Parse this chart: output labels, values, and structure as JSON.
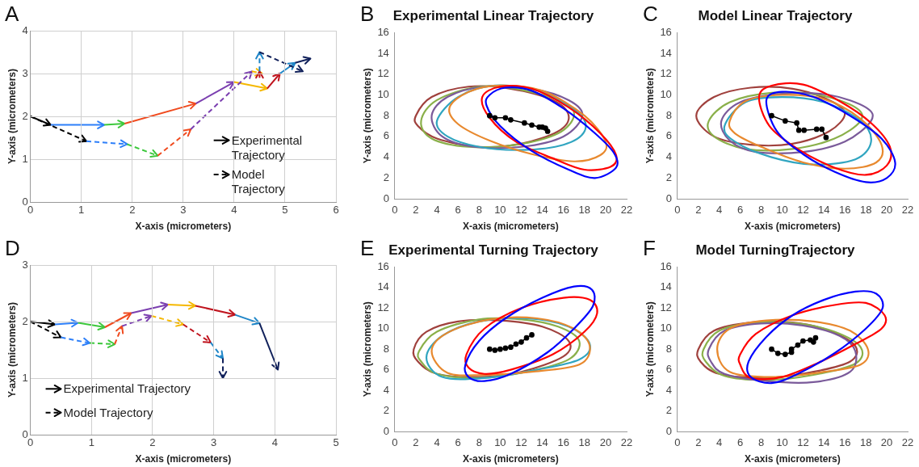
{
  "chart_data": [
    {
      "type": "line",
      "annotations": [
        "A",
        "Experimental Trajectory",
        "Model Trajectory"
      ],
      "xlabel": "X-axis (micrometers)",
      "ylabel": "Y-axis (micrometers)",
      "xlim": [
        0,
        6
      ],
      "xticks": [
        0,
        1,
        2,
        3,
        4,
        5,
        6
      ],
      "ylim": [
        0,
        4
      ],
      "yticks": [
        0,
        1,
        2,
        3,
        4
      ],
      "grid": true
    },
    {
      "type": "line",
      "title": "Experimental Linear Trajectory",
      "annotations": [
        "B"
      ],
      "xlabel": "X-axis (micrometers)",
      "ylabel": "Y-axis (micrometers)",
      "xlim": [
        0,
        22
      ],
      "xticks": [
        0,
        2,
        4,
        6,
        8,
        10,
        12,
        14,
        16,
        18,
        20,
        22
      ],
      "ylim": [
        0,
        16
      ],
      "yticks": [
        0,
        2,
        4,
        6,
        8,
        10,
        12,
        14,
        16
      ],
      "marker": "circle",
      "series": [
        {
          "color": "#000000",
          "x": [
            9,
            9.5,
            10.5,
            11,
            12.3,
            13,
            13.7,
            14,
            14.3,
            14.5
          ],
          "values": [
            8,
            7.8,
            7.8,
            7.6,
            7.3,
            7.1,
            6.9,
            6.9,
            6.8,
            6.5
          ]
        }
      ]
    },
    {
      "type": "line",
      "title": "Model Linear Trajectory",
      "annotations": [
        "C"
      ],
      "xlabel": "X-axis (micrometers)",
      "ylabel": "Y-axis (micrometers)",
      "xlim": [
        0,
        22
      ],
      "xticks": [
        0,
        2,
        4,
        6,
        8,
        10,
        12,
        14,
        16,
        18,
        20,
        22
      ],
      "ylim": [
        0,
        16
      ],
      "yticks": [
        0,
        2,
        4,
        6,
        8,
        10,
        12,
        14,
        16
      ],
      "marker": "circle",
      "series": [
        {
          "color": "#000000",
          "x": [
            9,
            10.3,
            11.4,
            11.6,
            12.1,
            13.3,
            13.8,
            14.2
          ],
          "values": [
            8,
            7.5,
            7.3,
            6.6,
            6.6,
            6.7,
            6.7,
            5.9
          ]
        }
      ]
    },
    {
      "type": "line",
      "annotations": [
        "D",
        "Experimental Trajectory",
        "Model Trajectory"
      ],
      "xlabel": "X-axis (micrometers)",
      "ylabel": "Y-axis (micrometers)",
      "xlim": [
        0,
        5
      ],
      "xticks": [
        0,
        1,
        2,
        3,
        4,
        5
      ],
      "ylim": [
        0,
        3
      ],
      "yticks": [
        0,
        1,
        2,
        3
      ],
      "grid": true
    },
    {
      "type": "line",
      "title": "Experimental Turning Trajectory",
      "annotations": [
        "E"
      ],
      "xlabel": "X-axis (micrometers)",
      "ylabel": "Y-axis (micrometers)",
      "xlim": [
        0,
        22
      ],
      "xticks": [
        0,
        2,
        4,
        6,
        8,
        10,
        12,
        14,
        16,
        18,
        20,
        22
      ],
      "ylim": [
        0,
        16
      ],
      "yticks": [
        0,
        2,
        4,
        6,
        8,
        10,
        12,
        14,
        16
      ],
      "marker": "circle",
      "series": [
        {
          "color": "#000000",
          "x": [
            9,
            9.5,
            10,
            10.5,
            11,
            11.5,
            12,
            12.5,
            13
          ],
          "values": [
            8,
            7.9,
            8,
            8.1,
            8.2,
            8.5,
            8.7,
            9.1,
            9.4
          ]
        }
      ]
    },
    {
      "type": "line",
      "title": "Model TurningTrajectory",
      "annotations": [
        "F"
      ],
      "xlabel": "X-axis (micrometers)",
      "ylabel": "Y-axis (micrometers)",
      "xlim": [
        0,
        22
      ],
      "xticks": [
        0,
        2,
        4,
        6,
        8,
        10,
        12,
        14,
        16,
        18,
        20,
        22
      ],
      "ylim": [
        0,
        16
      ],
      "yticks": [
        0,
        2,
        4,
        6,
        8,
        10,
        12,
        14,
        16
      ],
      "marker": "circle",
      "series": [
        {
          "color": "#000000",
          "x": [
            9,
            9.6,
            10.3,
            10.9,
            10.9,
            11.5,
            12,
            12.7,
            13,
            13.2
          ],
          "values": [
            8,
            7.6,
            7.5,
            7.7,
            8,
            8.4,
            8.8,
            8.9,
            8.7,
            9.1
          ]
        }
      ]
    }
  ]
}
